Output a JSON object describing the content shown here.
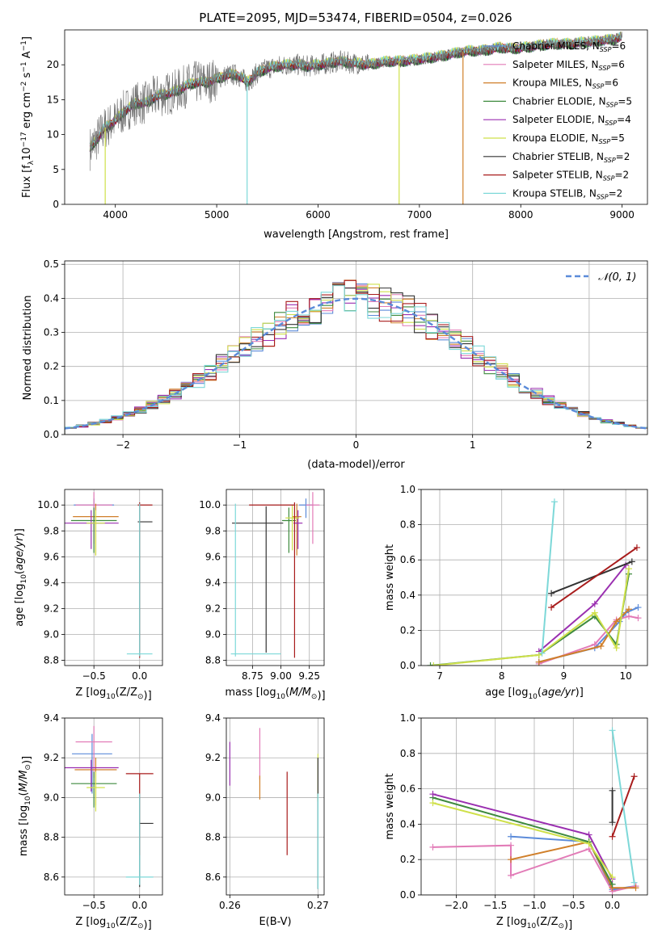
{
  "colors": {
    "Chabrier MILES": "#5b8bd9",
    "Salpeter MILES": "#e27bb7",
    "Kroupa MILES": "#d07f2a",
    "Chabrier ELODIE": "#3e8a3e",
    "Salpeter ELODIE": "#9a2fb0",
    "Kroupa ELODIE": "#cfe04a",
    "Chabrier STELIB": "#333333",
    "Salpeter STELIB": "#a81c1c",
    "Kroupa STELIB": "#7dd8d8",
    "N01": "#5b8bd9"
  },
  "chart_data": [
    {
      "id": "spectrum",
      "type": "line",
      "title": "PLATE=2095, MJD=53474, FIBERID=0504, z=0.026",
      "xlabel": "wavelength [Angstrom, rest frame]",
      "ylabel": "Flux [f_λ10^-17 erg cm^-2 s^-1 A^-1]",
      "xlim": [
        3500,
        9250
      ],
      "ylim": [
        0,
        25
      ],
      "xticks": [
        "4000",
        "5000",
        "6000",
        "7000",
        "8000",
        "9000"
      ],
      "yticks": [
        "0",
        "5",
        "10",
        "15",
        "20"
      ],
      "legend_position": "top-right",
      "legend": [
        {
          "label": "Chabrier MILES, N_SSP=6",
          "pre": "Chabrier MILES, N",
          "sub": "SSP",
          "post": "=6"
        },
        {
          "label": "Salpeter MILES, N_SSP=6",
          "pre": "Salpeter MILES, N",
          "sub": "SSP",
          "post": "=6"
        },
        {
          "label": "Kroupa MILES, N_SSP=6",
          "pre": "Kroupa MILES, N",
          "sub": "SSP",
          "post": "=6"
        },
        {
          "label": "Chabrier ELODIE, N_SSP=5",
          "pre": "Chabrier ELODIE, N",
          "sub": "SSP",
          "post": "=5"
        },
        {
          "label": "Salpeter ELODIE, N_SSP=4",
          "pre": "Salpeter ELODIE, N",
          "sub": "SSP",
          "post": "=4"
        },
        {
          "label": "Kroupa ELODIE, N_SSP=5",
          "pre": "Kroupa ELODIE, N",
          "sub": "SSP",
          "post": "=5"
        },
        {
          "label": "Chabrier STELIB, N_SSP=2",
          "pre": "Chabrier STELIB, N",
          "sub": "SSP",
          "post": "=2"
        },
        {
          "label": "Salpeter STELIB, N_SSP=2",
          "pre": "Salpeter STELIB, N",
          "sub": "SSP",
          "post": "=2"
        },
        {
          "label": "Kroupa STELIB, N_SSP=2",
          "pre": "Kroupa STELIB, N",
          "sub": "SSP",
          "post": "=2"
        }
      ],
      "data_envelope": {
        "x": [
          3750,
          3800,
          3900,
          4000,
          4100,
          4200,
          4300,
          4400,
          4500,
          4600,
          4700,
          4800,
          4900,
          5000,
          5100,
          5200,
          5300,
          5400,
          5500,
          5600,
          5700,
          5800,
          5900,
          6000,
          6100,
          6200,
          6300,
          6400,
          6500,
          6600,
          6700,
          6800,
          6900,
          7000,
          7100,
          7200,
          7300,
          7400,
          7500,
          7600,
          7700,
          7800,
          7900,
          8000,
          8100,
          8200,
          8300,
          8400,
          8500,
          8600,
          8700,
          8800,
          8900,
          9000
        ],
        "y": [
          8,
          9,
          11,
          12,
          13.5,
          14.5,
          14.5,
          15.5,
          15.8,
          16.2,
          17,
          17.5,
          17.5,
          18,
          18.5,
          18.6,
          17.5,
          18.8,
          19.5,
          19.8,
          20,
          20,
          19.8,
          20,
          20.2,
          20.5,
          20.3,
          20.2,
          20,
          20.3,
          20.5,
          20.5,
          20.6,
          20.8,
          21,
          21.2,
          21.5,
          21.8,
          22,
          22,
          22.2,
          22.5,
          22.3,
          22.4,
          22.6,
          22.8,
          23,
          23,
          23,
          23.2,
          23.3,
          23.5,
          23.6,
          24
        ]
      },
      "model_drops": [
        {
          "x": 3900,
          "y": 0,
          "series": "Kroupa ELODIE"
        },
        {
          "x": 5300,
          "y": 0,
          "series": "Kroupa STELIB"
        },
        {
          "x": 6800,
          "y": 0,
          "series": "Kroupa ELODIE"
        },
        {
          "x": 7430,
          "y": 0,
          "series": "Kroupa MILES"
        }
      ]
    },
    {
      "id": "residuals",
      "type": "line",
      "xlabel": "(data-model)/error",
      "ylabel": "Normed distribution",
      "xlim": [
        -2.5,
        2.5
      ],
      "ylim": [
        0,
        0.51
      ],
      "xticks": [
        "−2",
        "−1",
        "0",
        "1",
        "2"
      ],
      "yticks": [
        "0.0",
        "0.1",
        "0.2",
        "0.3",
        "0.4",
        "0.5"
      ],
      "legend_position": "top-right",
      "curve_label": "𝒩(0, 1)",
      "bin_width": 0.1
    },
    {
      "id": "age-Z",
      "type": "scatter",
      "xlabel": "Z [log10(Z/Z⊙)]",
      "ylabel": "age [log10(age/yr)]",
      "xlim": [
        -0.82,
        0.25
      ],
      "ylim": [
        8.76,
        10.12
      ],
      "xticks": [
        "−0.5",
        "0.0"
      ],
      "yticks": [
        "8.8",
        "9.0",
        "9.2",
        "9.4",
        "9.6",
        "9.8",
        "10.0"
      ],
      "points": [
        {
          "series": "Chabrier MILES",
          "x": -0.5,
          "xerr": [
            0.22,
            0.22
          ],
          "y": 10.0,
          "yerr": [
            0.1,
            0.05
          ]
        },
        {
          "series": "Salpeter MILES",
          "x": -0.5,
          "xerr": [
            0.2,
            0.2
          ],
          "y": 10.0,
          "yerr": [
            0.3,
            0.1
          ]
        },
        {
          "series": "Kroupa MILES",
          "x": -0.48,
          "xerr": [
            0.25,
            0.25
          ],
          "y": 9.91,
          "yerr": [
            0.3,
            0.1
          ]
        },
        {
          "series": "Chabrier ELODIE",
          "x": -0.5,
          "xerr": [
            0.25,
            0.25
          ],
          "y": 9.88,
          "yerr": [
            0.25,
            0.1
          ]
        },
        {
          "series": "Salpeter ELODIE",
          "x": -0.53,
          "xerr": [
            0.33,
            0.3
          ],
          "y": 9.86,
          "yerr": [
            0.2,
            0.1
          ]
        },
        {
          "series": "Kroupa ELODIE",
          "x": -0.48,
          "xerr": [
            0.1,
            0.1
          ],
          "y": 9.86,
          "yerr": [
            0.25,
            0.1
          ]
        },
        {
          "series": "Chabrier STELIB",
          "x": 0.0,
          "xerr": [
            0.02,
            0.14
          ],
          "y": 9.87,
          "yerr": [
            1.0,
            0.13
          ]
        },
        {
          "series": "Salpeter STELIB",
          "x": 0.0,
          "xerr": [
            0.02,
            0.14
          ],
          "y": 10.0,
          "yerr": [
            1.18,
            0.02
          ]
        },
        {
          "series": "Kroupa STELIB",
          "x": 0.0,
          "xerr": [
            0.14,
            0.14
          ],
          "y": 8.85,
          "yerr": [
            0.02,
            1.16
          ]
        }
      ]
    },
    {
      "id": "age-mass",
      "type": "scatter",
      "xlabel": "mass [log10(M/M⊙)]",
      "ylabel": "",
      "xlim": [
        8.52,
        9.38
      ],
      "ylim": [
        8.76,
        10.12
      ],
      "xticks": [
        "8.75",
        "9.00",
        "9.25"
      ],
      "yticks": [
        "8.8",
        "9.0",
        "9.2",
        "9.4",
        "9.6",
        "9.8",
        "10.0"
      ],
      "points": [
        {
          "series": "Chabrier MILES",
          "x": 9.22,
          "xerr": [
            0.06,
            0.06
          ],
          "y": 10.0,
          "yerr": [
            0.1,
            0.05
          ]
        },
        {
          "series": "Salpeter MILES",
          "x": 9.28,
          "xerr": [
            0.06,
            0.06
          ],
          "y": 10.0,
          "yerr": [
            0.3,
            0.1
          ]
        },
        {
          "series": "Kroupa MILES",
          "x": 9.14,
          "xerr": [
            0.04,
            0.04
          ],
          "y": 9.91,
          "yerr": [
            0.3,
            0.1
          ]
        },
        {
          "series": "Chabrier ELODIE",
          "x": 9.07,
          "xerr": [
            0.06,
            0.06
          ],
          "y": 9.88,
          "yerr": [
            0.25,
            0.1
          ]
        },
        {
          "series": "Salpeter ELODIE",
          "x": 9.15,
          "xerr": [
            0.04,
            0.04
          ],
          "y": 9.86,
          "yerr": [
            0.2,
            0.1
          ]
        },
        {
          "series": "Kroupa ELODIE",
          "x": 9.1,
          "xerr": [
            0.06,
            0.06
          ],
          "y": 9.9,
          "yerr": [
            0.25,
            0.1
          ]
        },
        {
          "series": "Chabrier STELIB",
          "x": 8.87,
          "xerr": [
            0.3,
            0.15
          ],
          "y": 9.86,
          "yerr": [
            1.0,
            0.13
          ]
        },
        {
          "series": "Salpeter STELIB",
          "x": 9.12,
          "xerr": [
            0.4,
            0.0
          ],
          "y": 10.0,
          "yerr": [
            1.18,
            0.02
          ]
        },
        {
          "series": "Kroupa STELIB",
          "x": 8.6,
          "xerr": [
            0.04,
            0.4
          ],
          "y": 8.85,
          "yerr": [
            0.02,
            1.16
          ]
        }
      ]
    },
    {
      "id": "mass-weight-age",
      "type": "line",
      "xlabel": "age [log10(age/yr)]",
      "ylabel": "mass weight",
      "xlim": [
        6.7,
        10.35
      ],
      "ylim": [
        0,
        1
      ],
      "xticks": [
        "7",
        "8",
        "9",
        "10"
      ],
      "yticks": [
        "0.0",
        "0.2",
        "0.4",
        "0.6",
        "0.8",
        "1.0"
      ],
      "series": [
        {
          "name": "Chabrier MILES",
          "x": [
            8.6,
            9.5,
            9.9,
            10.0,
            10.2
          ],
          "y": [
            0.02,
            0.1,
            0.25,
            0.3,
            0.33
          ]
        },
        {
          "name": "Salpeter MILES",
          "x": [
            8.6,
            9.5,
            9.85,
            10.05,
            10.2
          ],
          "y": [
            0.01,
            0.12,
            0.26,
            0.28,
            0.27
          ]
        },
        {
          "name": "Kroupa MILES",
          "x": [
            8.6,
            9.6,
            9.85,
            10.05
          ],
          "y": [
            0.02,
            0.11,
            0.25,
            0.32
          ]
        },
        {
          "name": "Chabrier ELODIE",
          "x": [
            6.85,
            8.6,
            9.5,
            9.85,
            10.05
          ],
          "y": [
            0.0,
            0.06,
            0.28,
            0.12,
            0.52
          ]
        },
        {
          "name": "Salpeter ELODIE",
          "x": [
            8.6,
            9.5,
            10.0
          ],
          "y": [
            0.08,
            0.35,
            0.57
          ]
        },
        {
          "name": "Kroupa ELODIE",
          "x": [
            6.9,
            8.6,
            9.5,
            9.85,
            10.05
          ],
          "y": [
            0.0,
            0.06,
            0.3,
            0.1,
            0.55
          ]
        },
        {
          "name": "Chabrier STELIB",
          "x": [
            8.8,
            10.1
          ],
          "y": [
            0.41,
            0.59
          ]
        },
        {
          "name": "Salpeter STELIB",
          "x": [
            8.8,
            10.18
          ],
          "y": [
            0.33,
            0.67
          ]
        },
        {
          "name": "Kroupa STELIB",
          "x": [
            8.65,
            8.85
          ],
          "y": [
            0.07,
            0.93
          ]
        }
      ]
    },
    {
      "id": "mass-Z",
      "type": "scatter",
      "xlabel": "Z [log10(Z/Z⊙)]",
      "ylabel": "mass [log10(M/M⊙)]",
      "xlim": [
        -0.82,
        0.25
      ],
      "ylim": [
        8.51,
        9.4
      ],
      "xticks": [
        "−0.5",
        "0.0"
      ],
      "yticks": [
        "8.6",
        "8.8",
        "9.0",
        "9.2",
        "9.4"
      ],
      "points": [
        {
          "series": "Chabrier MILES",
          "x": -0.52,
          "xerr": [
            0.22,
            0.22
          ],
          "y": 9.22,
          "yerr": [
            0.2,
            0.1
          ]
        },
        {
          "series": "Salpeter MILES",
          "x": -0.5,
          "xerr": [
            0.2,
            0.2
          ],
          "y": 9.28,
          "yerr": [
            0.18,
            0.08
          ]
        },
        {
          "series": "Kroupa MILES",
          "x": -0.48,
          "xerr": [
            0.23,
            0.23
          ],
          "y": 9.14,
          "yerr": [
            0.18,
            0.06
          ]
        },
        {
          "series": "Chabrier ELODIE",
          "x": -0.5,
          "xerr": [
            0.25,
            0.25
          ],
          "y": 9.07,
          "yerr": [
            0.12,
            0.06
          ]
        },
        {
          "series": "Salpeter ELODIE",
          "x": -0.53,
          "xerr": [
            0.3,
            0.3
          ],
          "y": 9.15,
          "yerr": [
            0.12,
            0.04
          ]
        },
        {
          "series": "Kroupa ELODIE",
          "x": -0.48,
          "xerr": [
            0.1,
            0.1
          ],
          "y": 9.05,
          "yerr": [
            0.12,
            0.08
          ]
        },
        {
          "series": "Chabrier STELIB",
          "x": 0.0,
          "xerr": [
            0.0,
            0.15
          ],
          "y": 8.87,
          "yerr": [
            0.32,
            0.15
          ]
        },
        {
          "series": "Salpeter STELIB",
          "x": 0.0,
          "xerr": [
            0.15,
            0.15
          ],
          "y": 9.12,
          "yerr": [
            0.41,
            0.0
          ]
        },
        {
          "series": "Kroupa STELIB",
          "x": 0.0,
          "xerr": [
            0.15,
            0.15
          ],
          "y": 8.6,
          "yerr": [
            0.04,
            0.42
          ]
        }
      ]
    },
    {
      "id": "mass-EBV",
      "type": "scatter",
      "xlabel": "E(B-V)",
      "ylabel": "",
      "xlim": [
        0.2596,
        0.2707
      ],
      "ylim": [
        8.51,
        9.4
      ],
      "xticks": [
        "0.26",
        "0.27"
      ],
      "yticks": [
        "8.6",
        "8.8",
        "9.0",
        "9.2",
        "9.4"
      ],
      "points": [
        {
          "series": "Salpeter ELODIE",
          "x": 0.26,
          "y": 9.17,
          "yerr": [
            0.11,
            0.11
          ]
        },
        {
          "series": "Salpeter MILES",
          "x": 0.2634,
          "y": 9.22,
          "yerr": [
            0.13,
            0.13
          ]
        },
        {
          "series": "Kroupa MILES",
          "x": 0.2634,
          "y": 9.05,
          "yerr": [
            0.06,
            0.06
          ]
        },
        {
          "series": "Salpeter STELIB",
          "x": 0.2665,
          "y": 8.92,
          "yerr": [
            0.21,
            0.21
          ]
        },
        {
          "series": "Kroupa ELODIE",
          "x": 0.27,
          "y": 9.1,
          "yerr": [
            0.12,
            0.12
          ]
        },
        {
          "series": "Chabrier STELIB",
          "x": 0.27,
          "y": 8.87,
          "yerr": [
            0.33,
            0.33
          ]
        },
        {
          "series": "Kroupa STELIB",
          "x": 0.27,
          "y": 8.78,
          "yerr": [
            0.24,
            0.24
          ]
        }
      ]
    },
    {
      "id": "mass-weight-Z",
      "type": "line",
      "xlabel": "Z [log10(Z/Z⊙)]",
      "ylabel": "mass weight",
      "xlim": [
        -2.45,
        0.45
      ],
      "ylim": [
        0,
        1
      ],
      "xticks": [
        "−2.0",
        "−1.5",
        "−1.0",
        "−0.5",
        "0.0"
      ],
      "yticks": [
        "0.0",
        "0.2",
        "0.4",
        "0.6",
        "0.8",
        "1.0"
      ],
      "series": [
        {
          "name": "Chabrier MILES",
          "x": [
            -1.3,
            -0.3,
            0.0,
            0.3
          ],
          "y": [
            0.33,
            0.3,
            0.03,
            0.05
          ]
        },
        {
          "name": "Salpeter MILES",
          "x": [
            -2.3,
            -1.3,
            -1.3,
            -0.3,
            0.0,
            0.3
          ],
          "y": [
            0.27,
            0.28,
            0.11,
            0.26,
            0.02,
            0.05
          ]
        },
        {
          "name": "Kroupa MILES",
          "x": [
            -1.3,
            -0.3,
            0.0,
            0.3
          ],
          "y": [
            0.2,
            0.3,
            0.04,
            0.04
          ]
        },
        {
          "name": "Chabrier ELODIE",
          "x": [
            -2.3,
            -0.3,
            0.0
          ],
          "y": [
            0.55,
            0.3,
            0.06
          ]
        },
        {
          "name": "Salpeter ELODIE",
          "x": [
            -2.3,
            -0.3,
            0.0
          ],
          "y": [
            0.57,
            0.34,
            0.09
          ]
        },
        {
          "name": "Kroupa ELODIE",
          "x": [
            -2.3,
            -0.3,
            0.0
          ],
          "y": [
            0.52,
            0.29,
            0.1
          ]
        },
        {
          "name": "Chabrier STELIB",
          "x": [
            0.0,
            0.0
          ],
          "y": [
            0.41,
            0.59
          ]
        },
        {
          "name": "Salpeter STELIB",
          "x": [
            0.0,
            0.28
          ],
          "y": [
            0.33,
            0.67
          ]
        },
        {
          "name": "Kroupa STELIB",
          "x": [
            0.0,
            0.28
          ],
          "y": [
            0.93,
            0.07
          ]
        }
      ]
    }
  ]
}
